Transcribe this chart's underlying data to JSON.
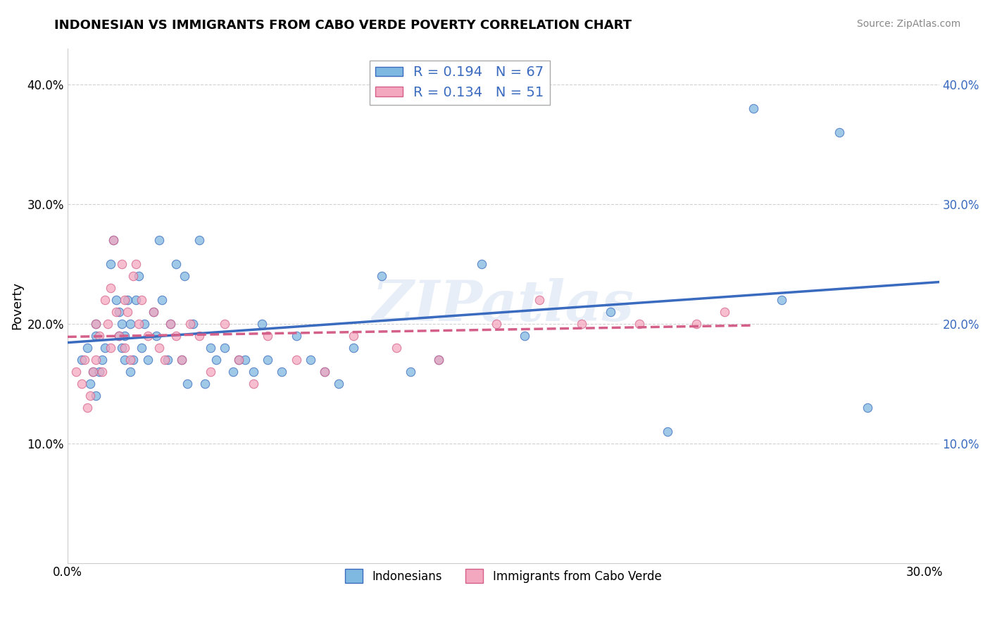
{
  "title": "INDONESIAN VS IMMIGRANTS FROM CABO VERDE POVERTY CORRELATION CHART",
  "source": "Source: ZipAtlas.com",
  "ylabel": "Poverty",
  "xlim": [
    0.0,
    0.305
  ],
  "ylim": [
    0.0,
    0.43
  ],
  "xtick_positions": [
    0.0,
    0.3
  ],
  "xticklabels": [
    "0.0%",
    "30.0%"
  ],
  "ytick_positions": [
    0.1,
    0.2,
    0.3,
    0.4
  ],
  "yticklabels": [
    "10.0%",
    "20.0%",
    "30.0%",
    "40.0%"
  ],
  "R_blue": 0.194,
  "N_blue": 67,
  "R_pink": 0.134,
  "N_pink": 51,
  "legend_entries": [
    "Indonesians",
    "Immigrants from Cabo Verde"
  ],
  "blue_color": "#7fb8e0",
  "pink_color": "#f4a8bf",
  "blue_line_color": "#3a6bbf",
  "pink_line_color": "#d4608a",
  "watermark": "ZIPatlas",
  "indonesian_x": [
    0.005,
    0.007,
    0.008,
    0.009,
    0.01,
    0.01,
    0.01,
    0.011,
    0.012,
    0.013,
    0.015,
    0.016,
    0.017,
    0.018,
    0.018,
    0.019,
    0.019,
    0.02,
    0.02,
    0.021,
    0.022,
    0.022,
    0.023,
    0.024,
    0.025,
    0.026,
    0.027,
    0.028,
    0.03,
    0.031,
    0.032,
    0.033,
    0.035,
    0.036,
    0.038,
    0.04,
    0.041,
    0.042,
    0.044,
    0.046,
    0.048,
    0.05,
    0.052,
    0.055,
    0.058,
    0.06,
    0.062,
    0.065,
    0.068,
    0.07,
    0.075,
    0.08,
    0.085,
    0.09,
    0.095,
    0.1,
    0.11,
    0.12,
    0.13,
    0.145,
    0.16,
    0.19,
    0.21,
    0.24,
    0.25,
    0.27,
    0.28
  ],
  "indonesian_y": [
    0.17,
    0.18,
    0.15,
    0.16,
    0.19,
    0.14,
    0.2,
    0.16,
    0.17,
    0.18,
    0.25,
    0.27,
    0.22,
    0.19,
    0.21,
    0.18,
    0.2,
    0.17,
    0.19,
    0.22,
    0.16,
    0.2,
    0.17,
    0.22,
    0.24,
    0.18,
    0.2,
    0.17,
    0.21,
    0.19,
    0.27,
    0.22,
    0.17,
    0.2,
    0.25,
    0.17,
    0.24,
    0.15,
    0.2,
    0.27,
    0.15,
    0.18,
    0.17,
    0.18,
    0.16,
    0.17,
    0.17,
    0.16,
    0.2,
    0.17,
    0.16,
    0.19,
    0.17,
    0.16,
    0.15,
    0.18,
    0.24,
    0.16,
    0.17,
    0.25,
    0.19,
    0.21,
    0.11,
    0.38,
    0.22,
    0.36,
    0.13
  ],
  "caboverde_x": [
    0.003,
    0.005,
    0.006,
    0.007,
    0.008,
    0.009,
    0.01,
    0.01,
    0.011,
    0.012,
    0.013,
    0.014,
    0.015,
    0.015,
    0.016,
    0.017,
    0.018,
    0.019,
    0.02,
    0.02,
    0.021,
    0.022,
    0.023,
    0.024,
    0.025,
    0.026,
    0.028,
    0.03,
    0.032,
    0.034,
    0.036,
    0.038,
    0.04,
    0.043,
    0.046,
    0.05,
    0.055,
    0.06,
    0.065,
    0.07,
    0.08,
    0.09,
    0.1,
    0.115,
    0.13,
    0.15,
    0.165,
    0.18,
    0.2,
    0.22,
    0.23
  ],
  "caboverde_y": [
    0.16,
    0.15,
    0.17,
    0.13,
    0.14,
    0.16,
    0.17,
    0.2,
    0.19,
    0.16,
    0.22,
    0.2,
    0.23,
    0.18,
    0.27,
    0.21,
    0.19,
    0.25,
    0.18,
    0.22,
    0.21,
    0.17,
    0.24,
    0.25,
    0.2,
    0.22,
    0.19,
    0.21,
    0.18,
    0.17,
    0.2,
    0.19,
    0.17,
    0.2,
    0.19,
    0.16,
    0.2,
    0.17,
    0.15,
    0.19,
    0.17,
    0.16,
    0.19,
    0.18,
    0.17,
    0.2,
    0.22,
    0.2,
    0.2,
    0.2,
    0.21
  ],
  "blue_line_x": [
    0.0,
    0.305
  ],
  "blue_line_y": [
    0.168,
    0.238
  ],
  "pink_line_x": [
    0.0,
    0.24
  ],
  "pink_line_y": [
    0.165,
    0.215
  ]
}
